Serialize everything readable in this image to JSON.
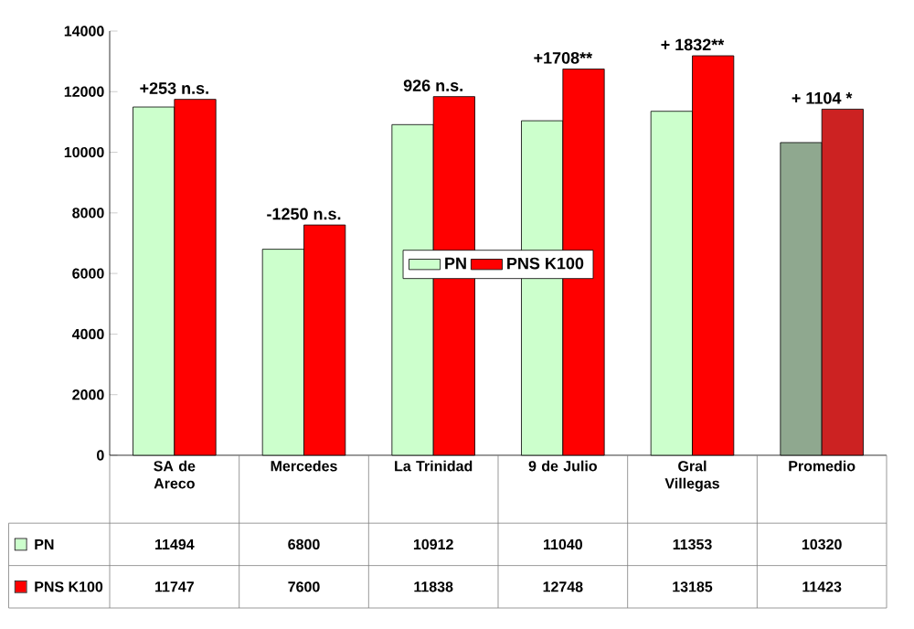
{
  "chart_data": {
    "type": "bar",
    "categories": [
      "SA de Areco",
      "Mercedes",
      "La Trinidad",
      "9 de Julio",
      "Gral Villegas",
      "Promedio"
    ],
    "series": [
      {
        "name": "PN",
        "colors": [
          "#ccffcc",
          "#ccffcc",
          "#ccffcc",
          "#ccffcc",
          "#ccffcc",
          "#8fa88f"
        ],
        "values": [
          11494,
          6800,
          10912,
          11040,
          11353,
          10320
        ]
      },
      {
        "name": "PNS K100",
        "colors": [
          "#ff0000",
          "#ff0000",
          "#ff0000",
          "#ff0000",
          "#ff0000",
          "#cc2222"
        ],
        "values": [
          11747,
          7600,
          11838,
          12748,
          13185,
          11423
        ]
      }
    ],
    "ylim": [
      0,
      14000
    ],
    "yticks": [
      0,
      2000,
      4000,
      6000,
      8000,
      10000,
      12000,
      14000
    ],
    "legend": "center",
    "data_labels": true,
    "annotations": [
      {
        "text": "+253 n.s.",
        "x": "SA de Areco",
        "y": 11747
      },
      {
        "text": "-1250 n.s.",
        "x": "Mercedes",
        "y": 7600
      },
      {
        "text": "926 n.s.",
        "x": "La Trinidad",
        "y": 11838
      },
      {
        "text": "+1708**",
        "x": "9 de Julio",
        "y": 12748
      },
      {
        "text": "+ 1832**",
        "x": "Gral Villegas",
        "y": 13185
      },
      {
        "text": "+ 1104 *",
        "x": "Promedio",
        "y": 11423
      }
    ]
  }
}
